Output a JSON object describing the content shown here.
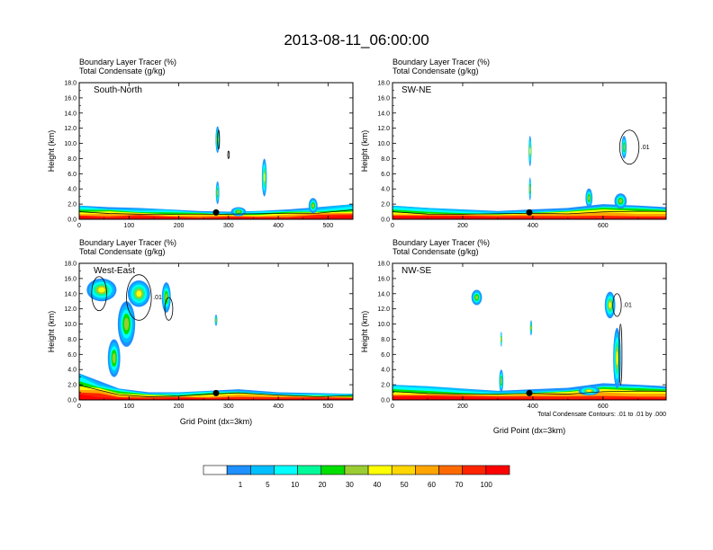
{
  "chart_data": {
    "type": "heatmap",
    "title": "2013-08-11_06:00:00",
    "colorbar": {
      "labels": [
        "1",
        "5",
        "10",
        "20",
        "30",
        "40",
        "50",
        "60",
        "70",
        "100"
      ],
      "colors": [
        "#ffffff",
        "#1e90ff",
        "#00bfff",
        "#00ffff",
        "#00fa9a",
        "#00e000",
        "#9acd32",
        "#ffff00",
        "#ffd700",
        "#ffa500",
        "#ff6a00",
        "#ff2400",
        "#ff0000"
      ]
    },
    "panels": [
      {
        "id": "south-north",
        "label": "South-North",
        "title_line1": "Boundary Layer Tracer   (%)",
        "title_line2": "Total Condensate   (g/kg)",
        "xlim": [
          0,
          550
        ],
        "xticks": [
          "0",
          "100",
          "200",
          "300",
          "400",
          "500"
        ],
        "xtick_values": [
          0,
          100,
          200,
          300,
          400,
          500
        ],
        "ylim": [
          0,
          18
        ],
        "ylabel": "Height (km)",
        "xlabel": "",
        "note": "",
        "marker_x": 275,
        "bl_top": [
          [
            0,
            1.8
          ],
          [
            60,
            1.6
          ],
          [
            120,
            1.5
          ],
          [
            180,
            1.3
          ],
          [
            240,
            1.1
          ],
          [
            300,
            1.0
          ],
          [
            360,
            1.1
          ],
          [
            420,
            1.3
          ],
          [
            480,
            1.6
          ],
          [
            550,
            2.0
          ]
        ],
        "blobs": [
          {
            "x": 278,
            "y": 10.5,
            "w": 8,
            "h": 3.5,
            "level": 3
          },
          {
            "x": 278,
            "y": 3.5,
            "w": 7,
            "h": 3.0,
            "level": 2
          },
          {
            "x": 372,
            "y": 5.5,
            "w": 10,
            "h": 5.0,
            "level": 3
          },
          {
            "x": 320,
            "y": 1.0,
            "w": 30,
            "h": 1.2,
            "level": 2
          },
          {
            "x": 470,
            "y": 1.8,
            "w": 18,
            "h": 2.0,
            "level": 2
          }
        ],
        "contours": [
          {
            "x": 280,
            "y": 10.5,
            "w": 4,
            "h": 2.5
          },
          {
            "x": 300,
            "y": 8.5,
            "w": 3,
            "h": 1.0
          }
        ]
      },
      {
        "id": "sw-ne",
        "label": "SW-NE",
        "title_line1": "Boundary Layer Tracer   (%)",
        "title_line2": "Total Condensate   (g/kg)",
        "xlim": [
          0,
          780
        ],
        "xticks": [
          "0",
          "200",
          "400",
          "600"
        ],
        "xtick_values": [
          0,
          200,
          400,
          600
        ],
        "ylim": [
          0,
          18
        ],
        "ylabel": "Height (km)",
        "xlabel": "",
        "note": "",
        "marker_x": 390,
        "contour_label": ".01",
        "bl_top": [
          [
            0,
            1.8
          ],
          [
            100,
            1.5
          ],
          [
            200,
            1.3
          ],
          [
            300,
            1.1
          ],
          [
            400,
            1.3
          ],
          [
            500,
            1.5
          ],
          [
            600,
            2.0
          ],
          [
            700,
            1.8
          ],
          [
            780,
            1.6
          ]
        ],
        "blobs": [
          {
            "x": 392,
            "y": 9.0,
            "w": 8,
            "h": 4.0,
            "level": 3
          },
          {
            "x": 392,
            "y": 4.0,
            "w": 6,
            "h": 3.0,
            "level": 2
          },
          {
            "x": 560,
            "y": 2.8,
            "w": 20,
            "h": 2.5,
            "level": 2
          },
          {
            "x": 660,
            "y": 9.5,
            "w": 14,
            "h": 3.0,
            "level": 2
          },
          {
            "x": 650,
            "y": 2.4,
            "w": 35,
            "h": 2.0,
            "level": 2
          }
        ],
        "contours": [
          {
            "x": 675,
            "y": 9.5,
            "w": 55,
            "h": 4.5
          }
        ]
      },
      {
        "id": "west-east",
        "label": "West-East",
        "title_line1": "Boundary Layer Tracer   (%)",
        "title_line2": "Total Condensate   (g/kg)",
        "xlim": [
          0,
          550
        ],
        "xticks": [
          "0",
          "100",
          "200",
          "300",
          "400",
          "500"
        ],
        "xtick_values": [
          0,
          100,
          200,
          300,
          400,
          500
        ],
        "ylim": [
          0,
          18
        ],
        "ylabel": "Height (km)",
        "xlabel": "Grid Point (dx=3km)",
        "note": "",
        "marker_x": 275,
        "contour_label": ".01",
        "bl_top": [
          [
            0,
            3.5
          ],
          [
            40,
            2.5
          ],
          [
            80,
            1.5
          ],
          [
            140,
            1.0
          ],
          [
            200,
            1.0
          ],
          [
            260,
            1.2
          ],
          [
            320,
            1.4
          ],
          [
            400,
            1.0
          ],
          [
            480,
            0.9
          ],
          [
            550,
            0.8
          ]
        ],
        "blobs": [
          {
            "x": 45,
            "y": 14.5,
            "w": 60,
            "h": 3.0,
            "level": 3
          },
          {
            "x": 120,
            "y": 14.0,
            "w": 45,
            "h": 3.5,
            "level": 3
          },
          {
            "x": 95,
            "y": 10.0,
            "w": 35,
            "h": 6.0,
            "level": 2
          },
          {
            "x": 70,
            "y": 5.5,
            "w": 25,
            "h": 5.0,
            "level": 2
          },
          {
            "x": 175,
            "y": 13.5,
            "w": 18,
            "h": 4.0,
            "level": 2
          },
          {
            "x": 275,
            "y": 10.5,
            "w": 5,
            "h": 1.5,
            "level": 2
          }
        ],
        "contours": [
          {
            "x": 120,
            "y": 13.5,
            "w": 50,
            "h": 6.0
          },
          {
            "x": 40,
            "y": 14.0,
            "w": 30,
            "h": 4.5
          },
          {
            "x": 180,
            "y": 12.0,
            "w": 16,
            "h": 3.0
          }
        ]
      },
      {
        "id": "nw-se",
        "label": "NW-SE",
        "title_line1": "Boundary Layer Tracer   (%)",
        "title_line2": "Total Condensate   (g/kg)",
        "xlim": [
          0,
          780
        ],
        "xticks": [
          "0",
          "200",
          "400",
          "600"
        ],
        "xtick_values": [
          0,
          200,
          400,
          600
        ],
        "ylim": [
          0,
          18
        ],
        "ylabel": "Height (km)",
        "xlabel": "Grid Point (dx=3km)",
        "note": "Total Condensate Contours: .01 to .01 by .000",
        "marker_x": 390,
        "contour_label": ".01",
        "bl_top": [
          [
            0,
            2.0
          ],
          [
            100,
            1.8
          ],
          [
            200,
            1.5
          ],
          [
            300,
            1.2
          ],
          [
            400,
            1.4
          ],
          [
            500,
            1.6
          ],
          [
            600,
            2.2
          ],
          [
            700,
            2.0
          ],
          [
            780,
            1.8
          ]
        ],
        "blobs": [
          {
            "x": 620,
            "y": 12.5,
            "w": 30,
            "h": 3.5,
            "level": 3
          },
          {
            "x": 640,
            "y": 5.5,
            "w": 22,
            "h": 8.0,
            "level": 3
          },
          {
            "x": 395,
            "y": 9.5,
            "w": 6,
            "h": 2.0,
            "level": 2
          },
          {
            "x": 310,
            "y": 8.0,
            "w": 4,
            "h": 2.0,
            "level": 2
          },
          {
            "x": 310,
            "y": 2.5,
            "w": 12,
            "h": 3.0,
            "level": 2
          },
          {
            "x": 240,
            "y": 13.5,
            "w": 30,
            "h": 2.0,
            "level": 2
          },
          {
            "x": 560,
            "y": 1.2,
            "w": 60,
            "h": 1.2,
            "level": 3
          }
        ],
        "contours": [
          {
            "x": 640,
            "y": 12.5,
            "w": 24,
            "h": 3.0
          },
          {
            "x": 650,
            "y": 6.0,
            "w": 8,
            "h": 8.0
          }
        ]
      }
    ]
  }
}
